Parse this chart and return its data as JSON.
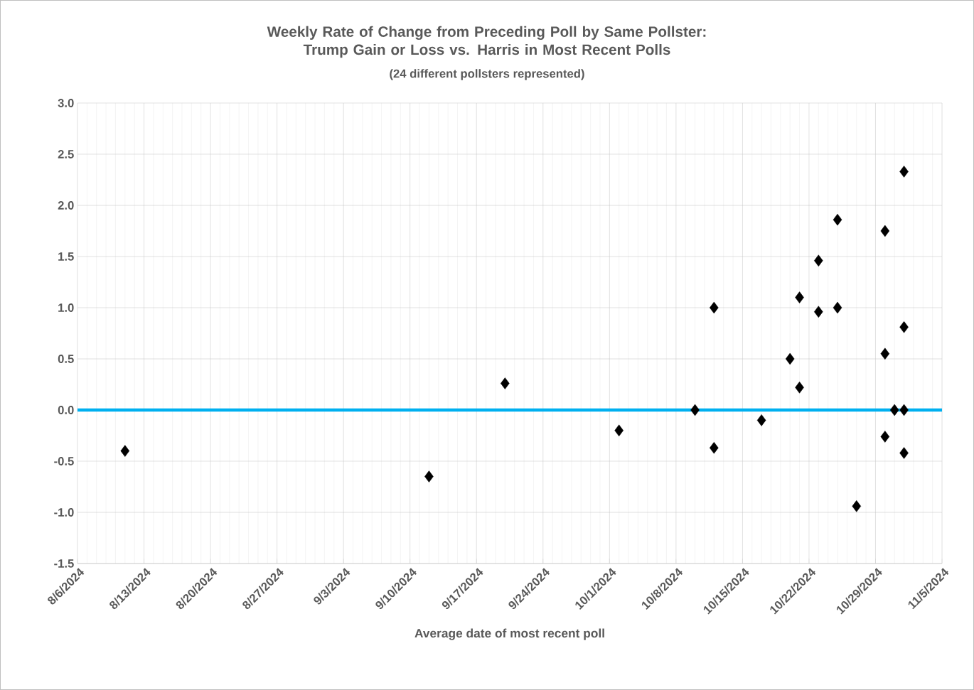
{
  "chart_data": {
    "type": "scatter",
    "title": "Weekly Rate of Change from Preceding Poll by Same Pollster:\nTrump Gain or Loss vs. Harris in Most Recent Polls",
    "subtitle": "(24 different pollsters represented)",
    "xlabel": "Average date of most recent poll",
    "x": [
      "2024-08-11",
      "2024-09-12",
      "2024-09-20",
      "2024-10-02",
      "2024-10-10",
      "2024-10-12",
      "2024-10-12",
      "2024-10-17",
      "2024-10-20",
      "2024-10-21",
      "2024-10-21",
      "2024-10-23",
      "2024-10-23",
      "2024-10-25",
      "2024-10-25",
      "2024-10-27",
      "2024-10-30",
      "2024-10-30",
      "2024-10-30",
      "2024-10-31",
      "2024-11-01",
      "2024-11-01",
      "2024-11-01",
      "2024-11-01"
    ],
    "values": [
      -0.4,
      -0.65,
      0.26,
      -0.2,
      0,
      1.0,
      -0.37,
      -0.1,
      0.5,
      1.1,
      0.22,
      1.46,
      0.96,
      1.86,
      1.0,
      -0.94,
      1.75,
      0.55,
      -0.26,
      0,
      2.33,
      0.81,
      0,
      -0.42
    ],
    "color": "#000000",
    "marker": "diamond",
    "grid": true,
    "xlim": [
      "2024-08-06",
      "2024-11-05"
    ],
    "xticks": [
      {
        "value": "2024-08-06",
        "label": "8/6/2024"
      },
      {
        "value": "2024-08-13",
        "label": "8/13/2024"
      },
      {
        "value": "2024-08-20",
        "label": "8/20/2024"
      },
      {
        "value": "2024-08-27",
        "label": "8/27/2024"
      },
      {
        "value": "2024-09-03",
        "label": "9/3/2024"
      },
      {
        "value": "2024-09-10",
        "label": "9/10/2024"
      },
      {
        "value": "2024-09-17",
        "label": "9/17/2024"
      },
      {
        "value": "2024-09-24",
        "label": "9/24/2024"
      },
      {
        "value": "2024-10-01",
        "label": "10/1/2024"
      },
      {
        "value": "2024-10-08",
        "label": "10/8/2024"
      },
      {
        "value": "2024-10-15",
        "label": "10/15/2024"
      },
      {
        "value": "2024-10-22",
        "label": "10/22/2024"
      },
      {
        "value": "2024-10-29",
        "label": "10/29/2024"
      },
      {
        "value": "2024-11-05",
        "label": "11/5/2024"
      }
    ],
    "ylim": [
      -1.5,
      3.0
    ],
    "yticks": [
      {
        "value": -1.5,
        "label": "-1.5"
      },
      {
        "value": -1.0,
        "label": "-1.0"
      },
      {
        "value": -0.5,
        "label": "-0.5"
      },
      {
        "value": 0,
        "label": "0.0"
      },
      {
        "value": 0.5,
        "label": "0.5"
      },
      {
        "value": 1.0,
        "label": "1.0"
      },
      {
        "value": 1.5,
        "label": "1.5"
      },
      {
        "value": 2.0,
        "label": "2.0"
      },
      {
        "value": 2.5,
        "label": "2.5"
      },
      {
        "value": 3.0,
        "label": "3.0"
      }
    ],
    "ref_lines": [
      {
        "axis": "y",
        "value": 0,
        "color": "#00b0f0"
      }
    ]
  }
}
